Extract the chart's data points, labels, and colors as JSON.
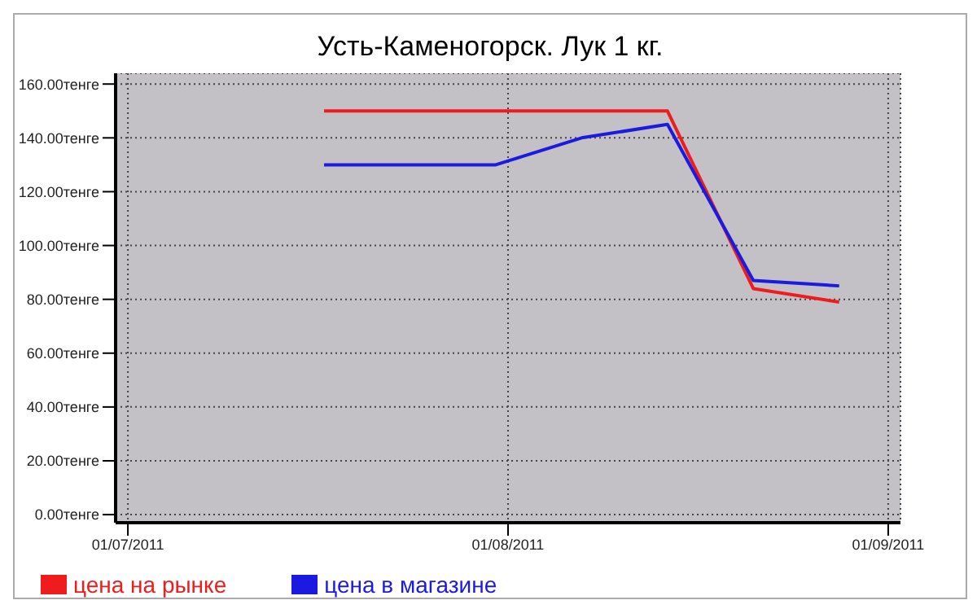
{
  "chart_data": {
    "type": "line",
    "title": "Усть-Каменогорск. Лук 1 кг.",
    "x": [
      "2011-07-17",
      "2011-07-31",
      "2011-08-07",
      "2011-08-14",
      "2011-08-21",
      "2011-08-28"
    ],
    "series": [
      {
        "name": "цена на рынке",
        "color": "#ee1c1c",
        "values": [
          150,
          150,
          150,
          150,
          84,
          79
        ]
      },
      {
        "name": "цена в магазине",
        "color": "#1a1ae0",
        "values": [
          130,
          130,
          140,
          145,
          87,
          85
        ]
      }
    ],
    "xlim": [
      "2011-06-30",
      "2011-09-02"
    ],
    "xticks": [
      {
        "value": "2011-07-01",
        "label": "01/07/2011"
      },
      {
        "value": "2011-08-01",
        "label": "01/08/2011"
      },
      {
        "value": "2011-09-01",
        "label": "01/09/2011"
      }
    ],
    "ylim": [
      -3,
      164
    ],
    "yticks": [
      {
        "value": 0,
        "label": "0.00тенге"
      },
      {
        "value": 20,
        "label": "20.00тенге"
      },
      {
        "value": 40,
        "label": "40.00тенге"
      },
      {
        "value": 60,
        "label": "60.00тенге"
      },
      {
        "value": 80,
        "label": "80.00тенге"
      },
      {
        "value": 100,
        "label": "100.00тенге"
      },
      {
        "value": 120,
        "label": "120.00тенге"
      },
      {
        "value": 140,
        "label": "140.00тенге"
      },
      {
        "value": 160,
        "label": "160.00тенге"
      }
    ],
    "grid": true,
    "legend": "bottom left",
    "marker": "none",
    "line_style": "solid"
  }
}
